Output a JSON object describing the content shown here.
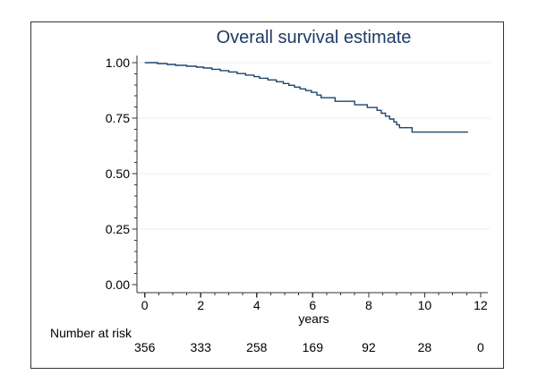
{
  "chart_data": {
    "type": "line",
    "subtype": "kaplan-meier-step",
    "title": "Overall survival estimate",
    "xlabel": "years",
    "ylabel": "",
    "xlim": [
      0,
      12
    ],
    "ylim": [
      0,
      1
    ],
    "grid_on": true,
    "legend": "none",
    "x_major_ticks": [
      0,
      2,
      4,
      6,
      8,
      10,
      12
    ],
    "x_minor_step": 0.5,
    "y_major_ticks": [
      {
        "value": 1.0,
        "label": "1.00"
      },
      {
        "value": 0.75,
        "label": "0.75"
      },
      {
        "value": 0.5,
        "label": "0.50"
      },
      {
        "value": 0.25,
        "label": "0.25"
      },
      {
        "value": 0.0,
        "label": "0.00"
      }
    ],
    "y_minor_step": 0.05,
    "gridline_values": [
      1.0,
      0.75,
      0.5,
      0.25
    ],
    "colors": {
      "curve": "#1a476f",
      "title_text": "#1e3a66",
      "axis": "#333333",
      "gridline": "#e8f1f2",
      "text": "#000000",
      "frame_border": "#333333"
    },
    "series": [
      {
        "name": "Overall survival",
        "color": "#1a476f",
        "steps": [
          [
            0,
            1.0
          ],
          [
            0.45,
            0.996
          ],
          [
            0.8,
            0.992
          ],
          [
            1.1,
            0.988
          ],
          [
            1.5,
            0.984
          ],
          [
            1.85,
            0.98
          ],
          [
            2.1,
            0.976
          ],
          [
            2.4,
            0.97
          ],
          [
            2.7,
            0.964
          ],
          [
            3.0,
            0.958
          ],
          [
            3.3,
            0.951
          ],
          [
            3.6,
            0.944
          ],
          [
            3.9,
            0.937
          ],
          [
            4.1,
            0.93
          ],
          [
            4.4,
            0.922
          ],
          [
            4.7,
            0.914
          ],
          [
            4.95,
            0.906
          ],
          [
            5.15,
            0.898
          ],
          [
            5.35,
            0.89
          ],
          [
            5.55,
            0.882
          ],
          [
            5.75,
            0.874
          ],
          [
            5.95,
            0.866
          ],
          [
            6.15,
            0.854
          ],
          [
            6.3,
            0.842
          ],
          [
            6.8,
            0.826
          ],
          [
            7.5,
            0.81
          ],
          [
            7.95,
            0.798
          ],
          [
            8.3,
            0.785
          ],
          [
            8.45,
            0.772
          ],
          [
            8.6,
            0.759
          ],
          [
            8.75,
            0.746
          ],
          [
            8.9,
            0.733
          ],
          [
            9.0,
            0.72
          ],
          [
            9.1,
            0.707
          ],
          [
            9.55,
            0.687
          ]
        ],
        "end_time": 11.55,
        "final_value": 0.687
      }
    ],
    "risk_table": {
      "label": "Number at risk",
      "times": [
        0,
        2,
        4,
        6,
        8,
        10,
        12
      ],
      "counts": [
        356,
        333,
        258,
        169,
        92,
        28,
        0
      ]
    }
  }
}
